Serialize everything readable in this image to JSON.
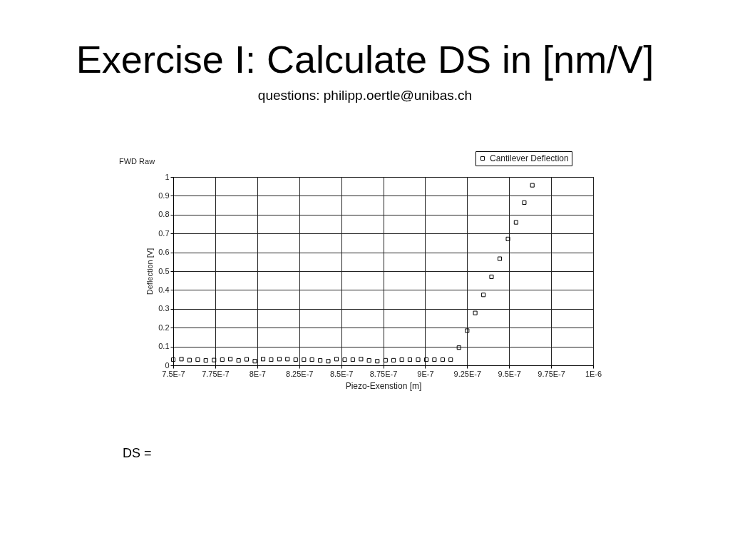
{
  "chart_data": {
    "type": "scatter",
    "title": "Exercise I: Calculate DS in [nm/V]",
    "subtitle": "questions: philipp.oertle@unibas.ch",
    "xlabel": "Piezo-Exenstion [m]",
    "ylabel": "Deflection [V]",
    "annotations": [
      "FWD Raw",
      "DS ="
    ],
    "x": [
      7.5e-07,
      7.549e-07,
      7.597e-07,
      7.646e-07,
      7.694e-07,
      7.743e-07,
      7.792e-07,
      7.84e-07,
      7.889e-07,
      7.937e-07,
      7.986e-07,
      8.035e-07,
      8.083e-07,
      8.132e-07,
      8.18e-07,
      8.229e-07,
      8.278e-07,
      8.326e-07,
      8.375e-07,
      8.423e-07,
      8.472e-07,
      8.521e-07,
      8.569e-07,
      8.618e-07,
      8.666e-07,
      8.715e-07,
      8.764e-07,
      8.812e-07,
      8.861e-07,
      8.909e-07,
      8.958e-07,
      9.007e-07,
      9.055e-07,
      9.104e-07,
      9.152e-07,
      9.201e-07,
      9.25e-07,
      9.298e-07,
      9.347e-07,
      9.395e-07,
      9.444e-07,
      9.493e-07,
      9.541e-07,
      9.59e-07,
      9.638e-07
    ],
    "series": [
      {
        "name": "Cantilever Deflection",
        "color": "#000000",
        "values": [
          0.03,
          0.033,
          0.028,
          0.03,
          0.026,
          0.028,
          0.03,
          0.033,
          0.026,
          0.032,
          0.022,
          0.033,
          0.03,
          0.033,
          0.033,
          0.03,
          0.03,
          0.03,
          0.026,
          0.022,
          0.033,
          0.03,
          0.03,
          0.033,
          0.026,
          0.022,
          0.027,
          0.027,
          0.03,
          0.03,
          0.03,
          0.03,
          0.03,
          0.03,
          0.03,
          0.094,
          0.184,
          0.278,
          0.374,
          0.47,
          0.566,
          0.671,
          0.759,
          0.864,
          0.956
        ]
      }
    ],
    "xlim": [
      7.5e-07,
      1e-06
    ],
    "xticks": [
      {
        "value": 7.5e-07,
        "label": "7.5E-7"
      },
      {
        "value": 7.75e-07,
        "label": "7.75E-7"
      },
      {
        "value": 8e-07,
        "label": "8E-7"
      },
      {
        "value": 8.25e-07,
        "label": "8.25E-7"
      },
      {
        "value": 8.5e-07,
        "label": "8.5E-7"
      },
      {
        "value": 8.75e-07,
        "label": "8.75E-7"
      },
      {
        "value": 9e-07,
        "label": "9E-7"
      },
      {
        "value": 9.25e-07,
        "label": "9.25E-7"
      },
      {
        "value": 9.5e-07,
        "label": "9.5E-7"
      },
      {
        "value": 9.75e-07,
        "label": "9.75E-7"
      },
      {
        "value": 1e-06,
        "label": "1E-6"
      }
    ],
    "ylim": [
      0,
      1
    ],
    "yticks": [
      0,
      0.1,
      0.2,
      0.3,
      0.4,
      0.5,
      0.6,
      0.7,
      0.8,
      0.9,
      1
    ],
    "grid": true,
    "legend": "top right",
    "marker": "square"
  }
}
